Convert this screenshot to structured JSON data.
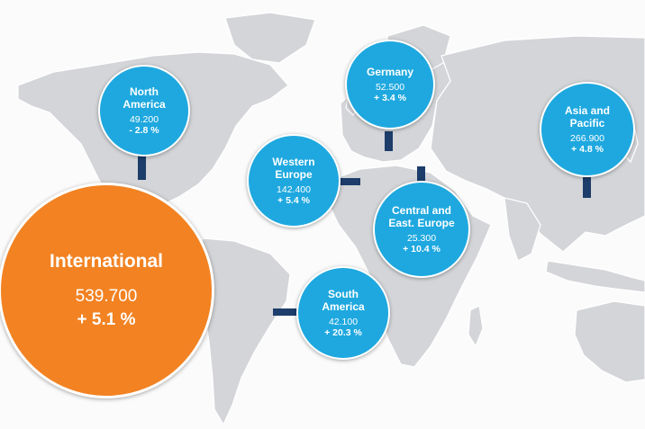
{
  "colors": {
    "region_bubble": "#1ea8df",
    "international_bubble": "#f28222",
    "connector": "#1d3d6b",
    "land": "#d4d5d8"
  },
  "international": {
    "name": "International",
    "value": "539.700",
    "change": "+ 5.1 %"
  },
  "regions": [
    {
      "id": "north-america",
      "name": "North\nAmerica",
      "value": "49.200",
      "change": "- 2.8 %"
    },
    {
      "id": "germany",
      "name": "Germany",
      "value": "52.500",
      "change": "+ 3.4 %"
    },
    {
      "id": "asia-pacific",
      "name": "Asia and\nPacific",
      "value": "266.900",
      "change": "+ 4.8 %"
    },
    {
      "id": "western-europe",
      "name": "Western\nEurope",
      "value": "142.400",
      "change": "+ 5.4 %"
    },
    {
      "id": "central-east-europe",
      "name": "Central and\nEast. Europe",
      "value": "25.300",
      "change": "+ 10.4 %"
    },
    {
      "id": "south-america",
      "name": "South\nAmerica",
      "value": "42.100",
      "change": "+ 20.3 %"
    }
  ]
}
